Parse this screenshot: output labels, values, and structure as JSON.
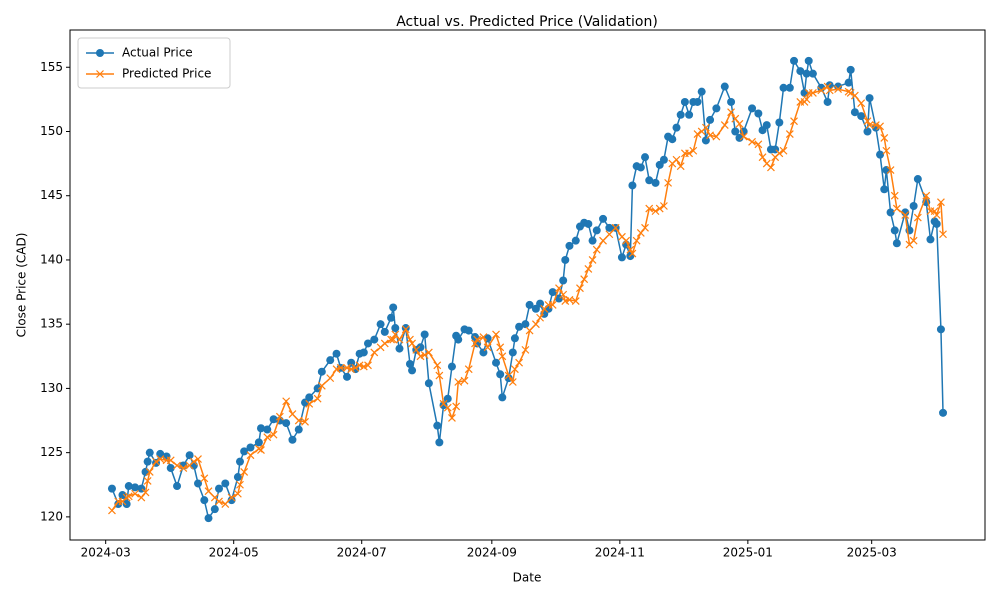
{
  "chart_data": {
    "type": "line",
    "title": "Actual vs. Predicted Price (Validation)",
    "xlabel": "Date",
    "ylabel": "Close Price (CAD)",
    "xlim": [
      -17,
      419
    ],
    "xticks": [
      {
        "value": 0,
        "label": "2024-03"
      },
      {
        "value": 61,
        "label": "2024-05"
      },
      {
        "value": 122,
        "label": "2024-07"
      },
      {
        "value": 184,
        "label": "2024-09"
      },
      {
        "value": 245,
        "label": "2024-11"
      },
      {
        "value": 306,
        "label": "2025-01"
      },
      {
        "value": 365,
        "label": "2025-03"
      }
    ],
    "ylim": [
      118.2,
      157.9
    ],
    "yticks": [
      120,
      125,
      130,
      135,
      140,
      145,
      150,
      155
    ],
    "legend": "upper left",
    "x": [
      3,
      6,
      8,
      10,
      11,
      14,
      17,
      19,
      20,
      21,
      24,
      26,
      29,
      31,
      34,
      37,
      40,
      42,
      44,
      47,
      49,
      52,
      54,
      57,
      60,
      63,
      64,
      66,
      69,
      73,
      74,
      77,
      80,
      83,
      86,
      89,
      92,
      95,
      97,
      101,
      103,
      107,
      110,
      112,
      115,
      117,
      119,
      121,
      123,
      125,
      128,
      131,
      133,
      136,
      137,
      138,
      140,
      143,
      145,
      146,
      148,
      150,
      152,
      154,
      158,
      159,
      161,
      163,
      165,
      167,
      168,
      171,
      173,
      176,
      177,
      180,
      182,
      186,
      188,
      189,
      192,
      194,
      195,
      197,
      200,
      202,
      205,
      207,
      209,
      211,
      213,
      216,
      218,
      219,
      221,
      224,
      226,
      228,
      230,
      232,
      234,
      237,
      240,
      243,
      246,
      248,
      250,
      251,
      253,
      255,
      257,
      259,
      262,
      264,
      266,
      268,
      270,
      272,
      274,
      276,
      278,
      280,
      282,
      284,
      286,
      288,
      291,
      295,
      298,
      300,
      302,
      304,
      308,
      311,
      313,
      315,
      317,
      319,
      321,
      323,
      326,
      328,
      331,
      333,
      334,
      335,
      337,
      341,
      344,
      345,
      349,
      354,
      355,
      357,
      360,
      363,
      364,
      367,
      369,
      371,
      372,
      374,
      376,
      377,
      381,
      383,
      385,
      387,
      391,
      393,
      395,
      396,
      398,
      399
    ],
    "series": [
      {
        "name": "Actual Price",
        "color": "#1f77b4",
        "marker": "o",
        "values": [
          122.2,
          121.0,
          121.7,
          121.0,
          122.4,
          122.3,
          122.2,
          123.5,
          124.3,
          125.0,
          124.2,
          124.9,
          124.7,
          123.8,
          122.4,
          124.0,
          124.8,
          124.0,
          122.6,
          121.3,
          119.9,
          120.6,
          122.2,
          122.6,
          121.3,
          123.1,
          124.3,
          125.1,
          125.4,
          125.8,
          126.9,
          126.8,
          127.6,
          127.5,
          127.3,
          126.0,
          126.8,
          128.9,
          129.3,
          130.0,
          131.3,
          132.2,
          132.7,
          131.6,
          130.9,
          132.0,
          131.5,
          132.7,
          132.8,
          133.5,
          133.8,
          135.0,
          134.4,
          135.5,
          136.3,
          134.7,
          133.1,
          134.7,
          131.9,
          131.4,
          133.0,
          133.2,
          134.2,
          130.4,
          127.1,
          125.8,
          128.7,
          129.2,
          131.7,
          134.1,
          133.8,
          134.6,
          134.5,
          134.0,
          133.5,
          132.8,
          133.9,
          132.0,
          131.1,
          129.3,
          130.8,
          132.8,
          133.9,
          134.8,
          135.0,
          136.5,
          136.2,
          136.6,
          135.8,
          136.2,
          137.5,
          137.0,
          138.4,
          140.0,
          141.1,
          141.5,
          142.6,
          142.9,
          142.8,
          141.5,
          142.3,
          143.2,
          142.5,
          142.5,
          140.2,
          141.2,
          140.3,
          145.8,
          147.3,
          147.2,
          148.0,
          146.2,
          146.0,
          147.4,
          147.8,
          149.6,
          149.4,
          150.3,
          151.3,
          152.3,
          151.3,
          152.3,
          152.3,
          153.1,
          149.3,
          150.9,
          151.8,
          153.5,
          152.3,
          150.0,
          149.5,
          150.0,
          151.8,
          151.4,
          150.1,
          150.5,
          148.6,
          148.6,
          150.7,
          153.4,
          153.4,
          155.5,
          154.7,
          153.0,
          154.5,
          155.5,
          154.5,
          153.4,
          152.3,
          153.6,
          153.5,
          153.8,
          154.8,
          151.5,
          151.2,
          150.0,
          152.6,
          150.3,
          148.2,
          145.5,
          147.0,
          143.7,
          142.3,
          141.3,
          143.7,
          142.3,
          144.2,
          146.3,
          144.5,
          141.6,
          143.0,
          142.8,
          134.6,
          128.1
        ]
      },
      {
        "name": "Predicted Price",
        "color": "#ff7f0e",
        "marker": "x",
        "values": [
          120.5,
          121.2,
          121.2,
          121.5,
          121.6,
          121.8,
          121.5,
          121.9,
          122.8,
          123.5,
          124.3,
          124.5,
          124.4,
          124.4,
          124.0,
          123.8,
          124.0,
          124.3,
          124.5,
          123.0,
          122.0,
          121.5,
          121.2,
          121.0,
          121.5,
          121.8,
          122.5,
          123.5,
          124.8,
          125.3,
          125.2,
          126.2,
          126.4,
          127.8,
          129.0,
          128.0,
          127.5,
          127.4,
          128.8,
          129.2,
          130.2,
          130.8,
          131.5,
          131.6,
          131.6,
          131.5,
          131.6,
          131.8,
          131.7,
          131.8,
          132.8,
          133.2,
          133.5,
          133.8,
          133.8,
          134.2,
          133.8,
          134.6,
          133.8,
          133.5,
          133.0,
          132.5,
          132.6,
          132.8,
          131.8,
          131.0,
          128.8,
          128.5,
          127.7,
          128.6,
          130.5,
          130.6,
          131.5,
          133.5,
          133.8,
          134.0,
          133.2,
          134.2,
          133.2,
          132.5,
          131.0,
          130.5,
          131.5,
          132.0,
          133.0,
          134.5,
          135.0,
          135.5,
          136.2,
          136.5,
          136.5,
          137.8,
          137.3,
          136.8,
          136.9,
          136.8,
          137.8,
          138.5,
          139.3,
          140.0,
          140.8,
          141.5,
          142.0,
          142.5,
          141.8,
          141.5,
          140.8,
          140.5,
          141.5,
          142.1,
          142.5,
          144.0,
          143.8,
          144.0,
          144.2,
          146.0,
          147.5,
          147.8,
          147.3,
          148.3,
          148.3,
          148.5,
          149.8,
          150.0,
          150.3,
          149.7,
          149.6,
          150.5,
          151.5,
          151.0,
          150.6,
          149.6,
          149.2,
          149.0,
          148.0,
          147.5,
          147.2,
          148.0,
          148.3,
          148.5,
          149.8,
          150.8,
          152.3,
          152.3,
          152.5,
          153.0,
          153.0,
          153.2,
          153.5,
          153.2,
          153.3,
          153.1,
          153.0,
          152.8,
          152.2,
          150.8,
          150.5,
          150.5,
          150.4,
          149.5,
          148.5,
          147.0,
          145.0,
          144.0,
          143.5,
          141.2,
          141.5,
          143.3,
          145.0,
          143.8,
          143.8,
          143.5,
          144.5,
          142.0
        ]
      }
    ]
  }
}
